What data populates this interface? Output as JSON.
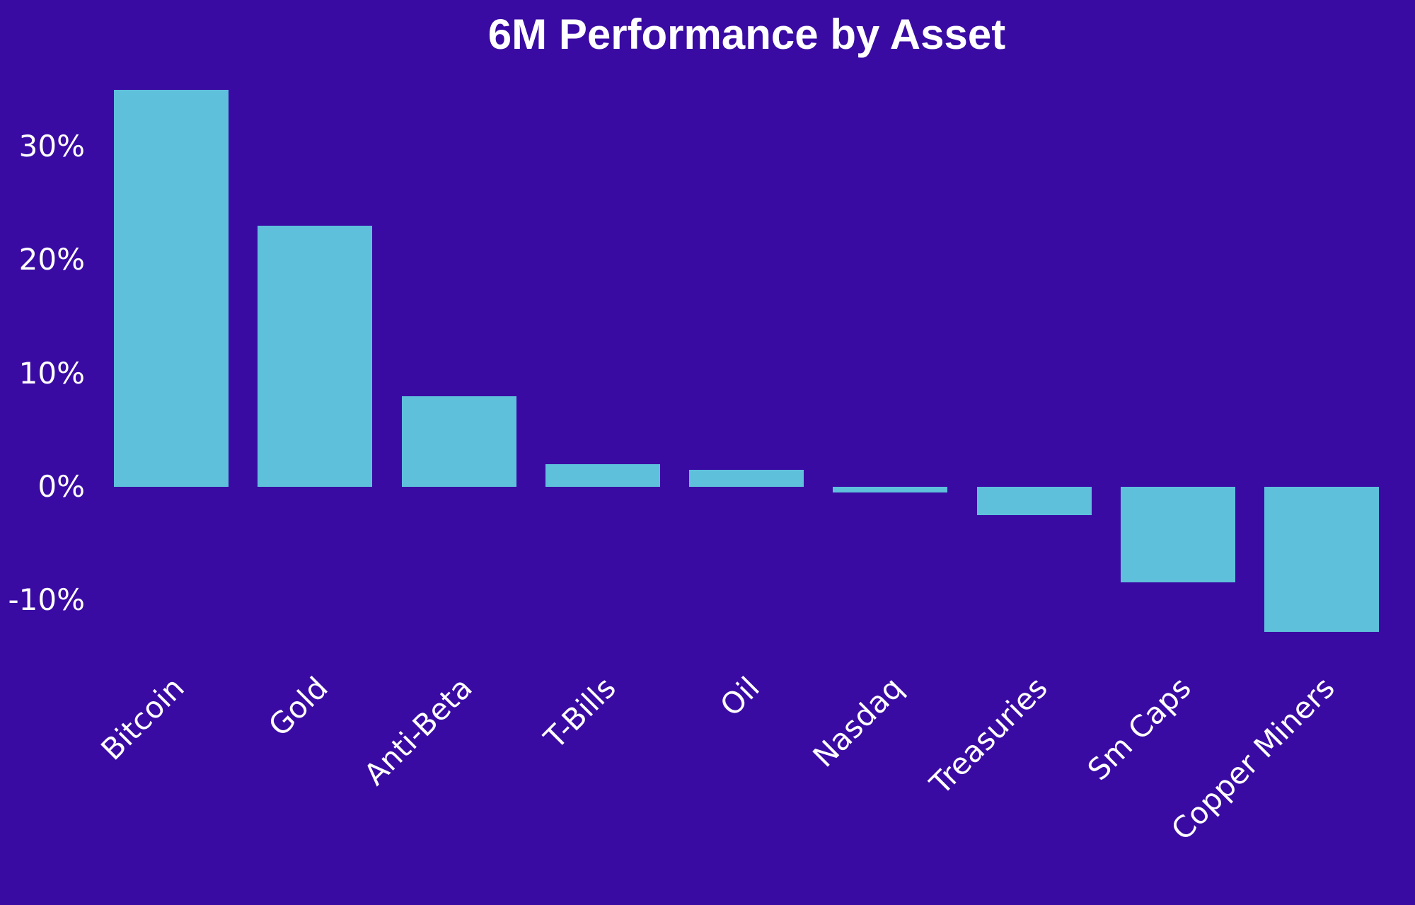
{
  "title": "6M Performance by Asset",
  "colors": {
    "background": "#3A0BA3",
    "bar": "#5FC0DC",
    "text": "#FFFFFF"
  },
  "chart_data": {
    "type": "bar",
    "title": "6M Performance by Asset",
    "xlabel": "",
    "ylabel": "",
    "categories": [
      "Bitcoin",
      "Gold",
      "Anti-Beta",
      "T-Bills",
      "Oil",
      "Nasdaq",
      "Treasuries",
      "Sm Caps",
      "Copper Miners"
    ],
    "values": [
      35,
      23,
      8,
      2,
      1.5,
      -0.5,
      -2.5,
      -8.4,
      -12.8
    ],
    "series": [
      {
        "name": "6M Performance",
        "values": [
          35,
          23,
          8,
          2,
          1.5,
          -0.5,
          -2.5,
          -8.4,
          -12.8
        ]
      }
    ],
    "yticks": [
      {
        "value": 30,
        "label": "30%"
      },
      {
        "value": 20,
        "label": "20%"
      },
      {
        "value": 10,
        "label": "10%"
      },
      {
        "value": 0,
        "label": "0%"
      },
      {
        "value": -10,
        "label": "-10%"
      }
    ],
    "ylim": [
      -14,
      36
    ],
    "grid": false,
    "legend": "none",
    "xtick_rotation_deg": 45,
    "bar_color": "#5FC0DC",
    "background_color": "#3A0BA3",
    "text_color": "#FFFFFF"
  }
}
